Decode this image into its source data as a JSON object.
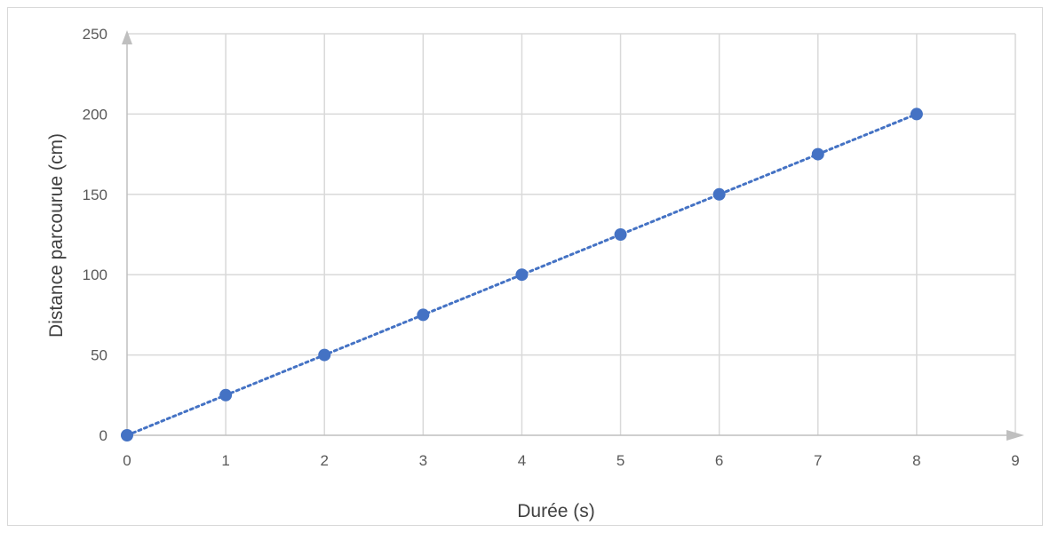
{
  "chart_data": {
    "type": "scatter",
    "title": "",
    "xlabel": "Durée (s)",
    "ylabel": "Distance parcourue (cm)",
    "xlim": [
      0,
      9
    ],
    "ylim": [
      0,
      250
    ],
    "x_ticks": [
      "0",
      "1",
      "2",
      "3",
      "4",
      "5",
      "6",
      "7",
      "8",
      "9"
    ],
    "y_ticks": [
      "0",
      "50",
      "100",
      "150",
      "200",
      "250"
    ],
    "grid": true,
    "legend": "none",
    "trendline": "linear, dotted",
    "series": [
      {
        "x": [
          0,
          1,
          2,
          3,
          4,
          5,
          6,
          7,
          8
        ],
        "y": [
          0,
          25,
          50,
          75,
          100,
          125,
          150,
          175,
          200
        ]
      }
    ],
    "colors": {
      "marker": "#4472c4",
      "trendline": "#4472c4",
      "grid": "#d9d9d9",
      "axis": "#bfbfbf"
    }
  }
}
